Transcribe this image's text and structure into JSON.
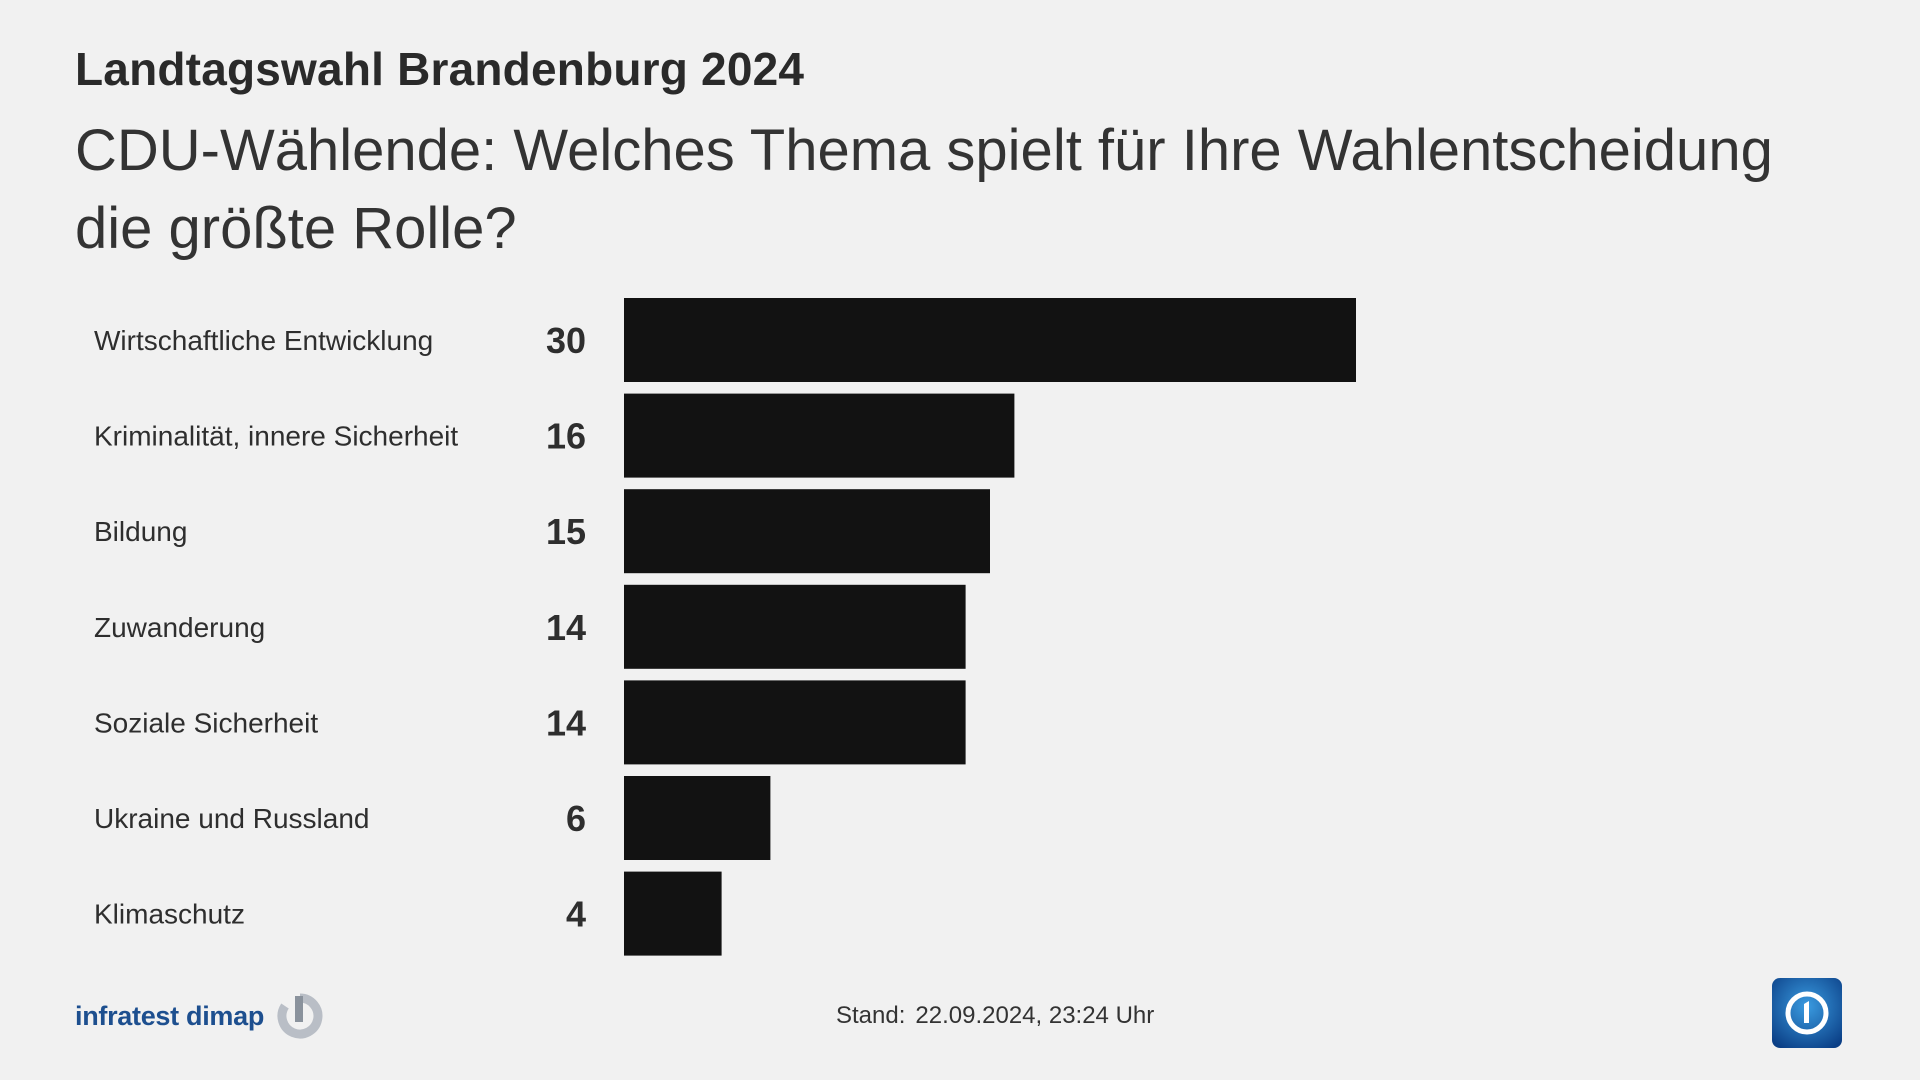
{
  "header": {
    "kicker": "Landtagswahl Brandenburg 2024",
    "headline": "CDU-Wählende: Welches Thema spielt für Ihre Wahlentscheidung die größte Rolle?"
  },
  "chart_data": {
    "type": "bar",
    "orientation": "horizontal",
    "categories": [
      "Wirtschaftliche Entwicklung",
      "Kriminalität, innere Sicherheit",
      "Bildung",
      "Zuwanderung",
      "Soziale Sicherheit",
      "Ukraine und Russland",
      "Klimaschutz"
    ],
    "values": [
      30,
      16,
      15,
      14,
      14,
      6,
      4
    ],
    "bar_color": "#121212",
    "xlim": [
      0,
      30
    ],
    "grid": false,
    "value_labels": true
  },
  "footer": {
    "source": "infratest dimap",
    "source_color": "#1d4f8f",
    "stand_label": "Stand:",
    "stand_value": "22.09.2024, 23:24 Uhr",
    "brand_icon": "ard-das-erste-icon"
  }
}
